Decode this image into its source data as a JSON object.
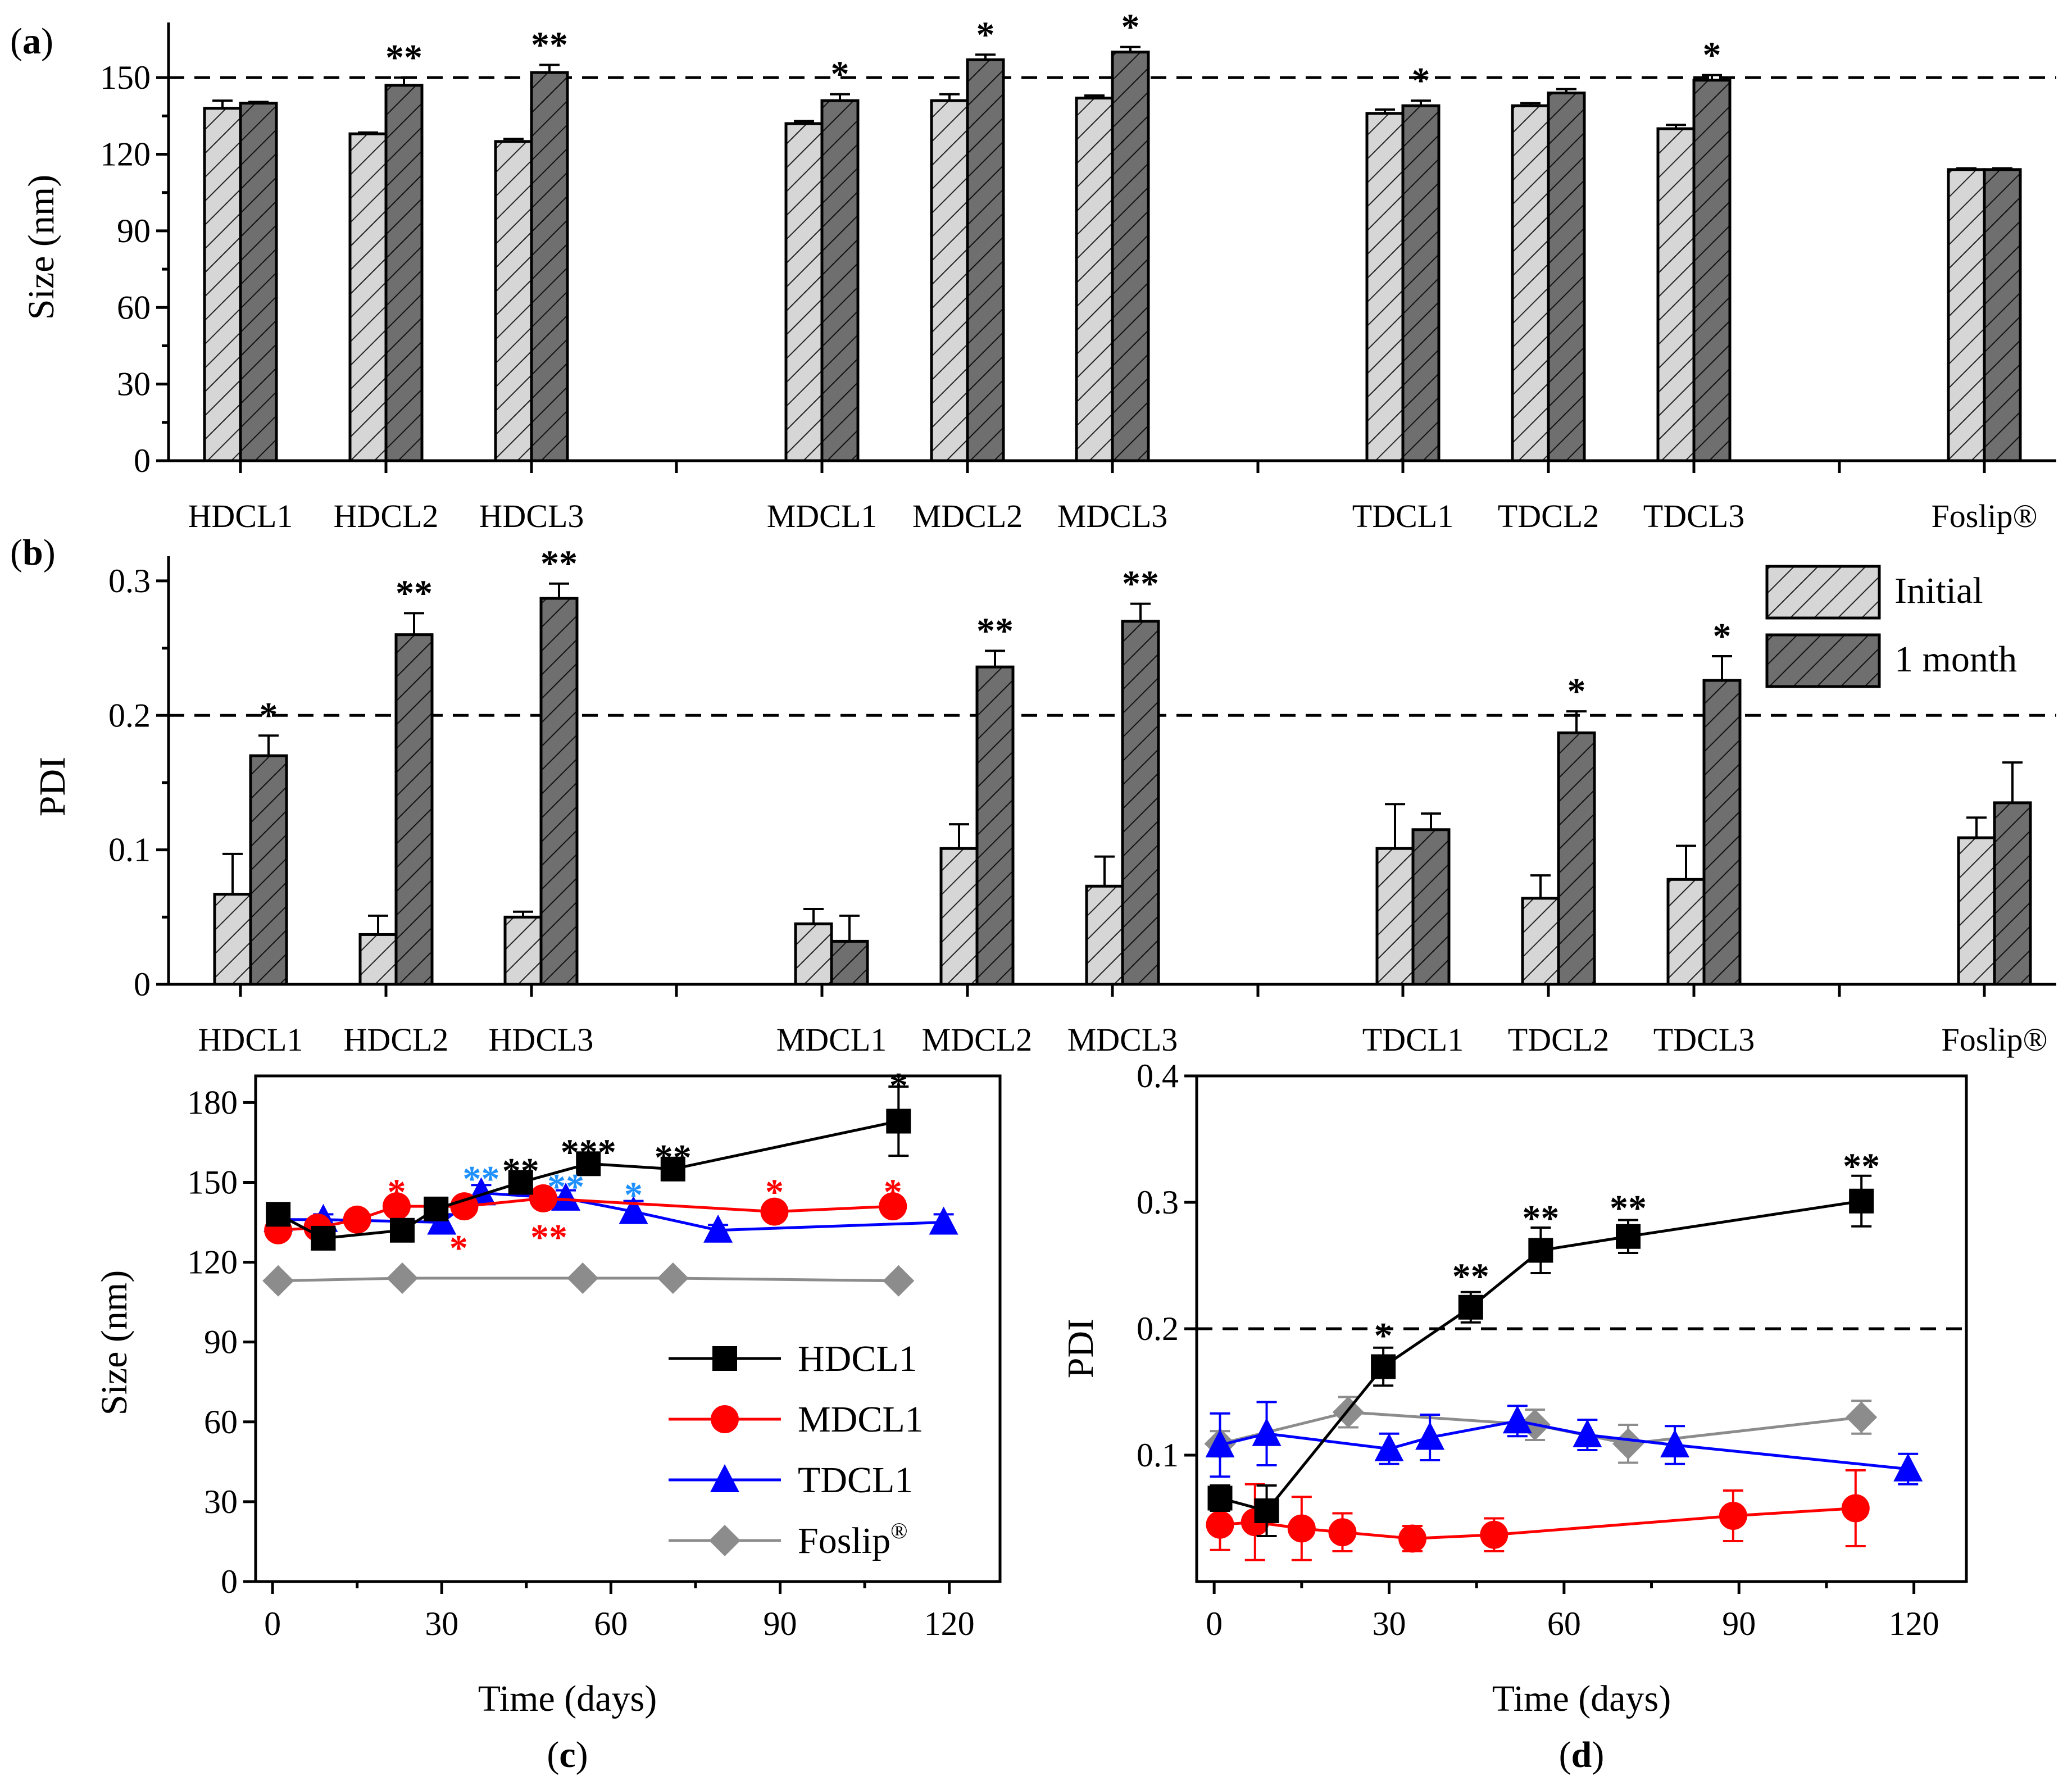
{
  "colors": {
    "initial": "#cfcfcf",
    "one_month": "#6f6f6f",
    "HDCL1": "#000000",
    "MDCL1": "#ff0000",
    "TDCL1": "#0000ff",
    "Foslip": "#8c8c8c",
    "star_blue": "#1e90ff"
  },
  "chart_data": [
    {
      "id": "a",
      "panel_label": "(a)",
      "type": "bar",
      "ylabel": "Size (nm)",
      "ylim": [
        0,
        165
      ],
      "yticks": [
        "0",
        "30",
        "60",
        "90",
        "120",
        "150"
      ],
      "reference_line": 150,
      "categories": [
        "HDCL1",
        "HDCL2",
        "HDCL3",
        "MDCL1",
        "MDCL2",
        "MDCL3",
        "TDCL1",
        "TDCL2",
        "TDCL3",
        "Foslip®"
      ],
      "series": [
        {
          "name": "Initial",
          "values": [
            138,
            128,
            125,
            132,
            141,
            142,
            136,
            139,
            130,
            114
          ],
          "errors": [
            3,
            0.5,
            1,
            1,
            2.5,
            1,
            1.5,
            1,
            1.5,
            0.5
          ]
        },
        {
          "name": "1 month",
          "values": [
            140,
            147,
            152,
            141,
            157,
            160,
            139,
            144,
            149,
            114
          ],
          "errors": [
            0.5,
            3,
            3,
            2.5,
            2,
            2,
            2,
            1.5,
            2,
            0.5
          ]
        }
      ],
      "significance": [
        "",
        "**",
        "**",
        "*",
        "*",
        "*",
        "*",
        "",
        "*",
        ""
      ]
    },
    {
      "id": "b",
      "panel_label": "(b)",
      "type": "bar",
      "ylabel": "PDI",
      "ylim": [
        0,
        0.31
      ],
      "yticks": [
        "0",
        "0.1",
        "0.2",
        "0.3"
      ],
      "reference_line": 0.2,
      "categories": [
        "HDCL1",
        "HDCL2",
        "HDCL3",
        "MDCL1",
        "MDCL2",
        "MDCL3",
        "TDCL1",
        "TDCL2",
        "TDCL3",
        "Foslip®"
      ],
      "series": [
        {
          "name": "Initial",
          "values": [
            0.067,
            0.037,
            0.05,
            0.045,
            0.101,
            0.073,
            0.101,
            0.064,
            0.078,
            0.109
          ],
          "errors": [
            0.03,
            0.014,
            0.004,
            0.011,
            0.018,
            0.022,
            0.033,
            0.017,
            0.025,
            0.015
          ]
        },
        {
          "name": "1 month",
          "values": [
            0.17,
            0.26,
            0.287,
            0.032,
            0.236,
            0.27,
            0.115,
            0.187,
            0.226,
            0.135
          ],
          "errors": [
            0.015,
            0.016,
            0.011,
            0.019,
            0.012,
            0.013,
            0.012,
            0.016,
            0.018,
            0.03
          ]
        }
      ],
      "significance": [
        "*",
        "**",
        "**",
        "",
        "**",
        "**",
        "",
        "*",
        "*",
        ""
      ],
      "legend": [
        "Initial",
        "1 month"
      ],
      "legend_position": "top-right"
    },
    {
      "id": "c",
      "panel_label": "(c)",
      "type": "line",
      "xlabel": "Time (days)",
      "ylabel": "Size (nm)",
      "xlim": [
        -3,
        129
      ],
      "ylim": [
        0,
        190
      ],
      "xticks": [
        "0",
        "30",
        "60",
        "90",
        "120"
      ],
      "yticks": [
        "0",
        "30",
        "60",
        "90",
        "120",
        "150",
        "180"
      ],
      "legend": [
        "HDCL1",
        "MDCL1",
        "TDCL1",
        "Foslip"
      ],
      "legend_superscript": "®",
      "legend_position": "bottom-right",
      "series": [
        {
          "name": "HDCL1",
          "marker": "square",
          "x": [
            1,
            9,
            23,
            29,
            44,
            56,
            71,
            111
          ],
          "y": [
            138,
            129,
            132,
            140,
            150,
            157,
            155,
            173
          ],
          "errors": [
            3,
            2,
            2,
            2,
            4,
            3,
            3,
            13
          ]
        },
        {
          "name": "MDCL1",
          "marker": "circle",
          "x": [
            1,
            8,
            15,
            22,
            34,
            48,
            89,
            110
          ],
          "y": [
            132,
            133,
            136,
            141,
            141,
            144,
            139,
            141
          ],
          "errors": [
            3,
            2,
            2,
            2,
            3,
            3,
            3,
            3
          ]
        },
        {
          "name": "TDCL1",
          "marker": "triangle",
          "x": [
            1,
            9,
            30,
            37,
            52,
            64,
            79,
            119
          ],
          "y": [
            136,
            136,
            135,
            146,
            144,
            139,
            132,
            135
          ],
          "errors": [
            3,
            2,
            3,
            3,
            3,
            4,
            2,
            3
          ]
        },
        {
          "name": "Foslip",
          "marker": "diamond",
          "x": [
            1,
            23,
            55,
            71,
            111
          ],
          "y": [
            113,
            114,
            114,
            114,
            113
          ],
          "errors": [
            1,
            1,
            1,
            1,
            1
          ]
        }
      ],
      "annotations": [
        {
          "text": "*",
          "x": 22,
          "y": 147,
          "series": "MDCL1"
        },
        {
          "text": "**",
          "x": 37,
          "y": 152,
          "series": "TDCL1"
        },
        {
          "text": "**",
          "x": 44,
          "y": 155,
          "series": "HDCL1"
        },
        {
          "text": "*",
          "x": 33,
          "y": 126,
          "series": "MDCL1"
        },
        {
          "text": "***",
          "x": 56,
          "y": 162,
          "series": "HDCL1"
        },
        {
          "text": "**",
          "x": 52,
          "y": 149,
          "series": "TDCL1"
        },
        {
          "text": "**",
          "x": 49,
          "y": 130,
          "series": "MDCL1"
        },
        {
          "text": "*",
          "x": 64,
          "y": 146,
          "series": "TDCL1"
        },
        {
          "text": "**",
          "x": 71,
          "y": 160,
          "series": "HDCL1"
        },
        {
          "text": "*",
          "x": 89,
          "y": 147,
          "series": "MDCL1"
        },
        {
          "text": "*",
          "x": 110,
          "y": 147,
          "series": "MDCL1"
        },
        {
          "text": "*",
          "x": 111,
          "y": 187,
          "series": "HDCL1"
        }
      ]
    },
    {
      "id": "d",
      "panel_label": "(d)",
      "type": "line",
      "xlabel": "Time (days)",
      "ylabel": "PDI",
      "xlim": [
        -3,
        129
      ],
      "ylim": [
        0,
        0.4
      ],
      "xticks": [
        "0",
        "30",
        "60",
        "90",
        "120"
      ],
      "yticks": [
        "0.1",
        "0.2",
        "0.3",
        "0.4"
      ],
      "reference_line": 0.2,
      "series": [
        {
          "name": "HDCL1",
          "marker": "square",
          "x": [
            1,
            9,
            29,
            44,
            56,
            71,
            111
          ],
          "y": [
            0.066,
            0.056,
            0.17,
            0.217,
            0.262,
            0.273,
            0.301
          ],
          "errors": [
            0.01,
            0.02,
            0.015,
            0.012,
            0.018,
            0.013,
            0.02
          ]
        },
        {
          "name": "MDCL1",
          "marker": "circle",
          "x": [
            1,
            7,
            15,
            22,
            34,
            48,
            89,
            110
          ],
          "y": [
            0.045,
            0.047,
            0.042,
            0.039,
            0.034,
            0.037,
            0.052,
            0.058
          ],
          "errors": [
            0.02,
            0.03,
            0.025,
            0.015,
            0.01,
            0.013,
            0.02,
            0.03
          ]
        },
        {
          "name": "TDCL1",
          "marker": "triangle",
          "x": [
            1,
            9,
            30,
            37,
            52,
            64,
            79,
            119
          ],
          "y": [
            0.108,
            0.117,
            0.105,
            0.114,
            0.127,
            0.116,
            0.108,
            0.089
          ],
          "errors": [
            0.025,
            0.025,
            0.012,
            0.018,
            0.012,
            0.012,
            0.015,
            0.012
          ]
        },
        {
          "name": "Foslip",
          "marker": "diamond",
          "x": [
            1,
            23,
            55,
            71,
            111
          ],
          "y": [
            0.109,
            0.134,
            0.124,
            0.109,
            0.13
          ],
          "errors": [
            0.01,
            0.012,
            0.012,
            0.015,
            0.013
          ]
        }
      ],
      "annotations": [
        {
          "text": "*",
          "x": 29,
          "y": 0.196
        },
        {
          "text": "**",
          "x": 44,
          "y": 0.243
        },
        {
          "text": "**",
          "x": 56,
          "y": 0.289
        },
        {
          "text": "**",
          "x": 71,
          "y": 0.297
        },
        {
          "text": "**",
          "x": 111,
          "y": 0.33
        }
      ],
      "caption": "d"
    }
  ],
  "caption_c": "c"
}
